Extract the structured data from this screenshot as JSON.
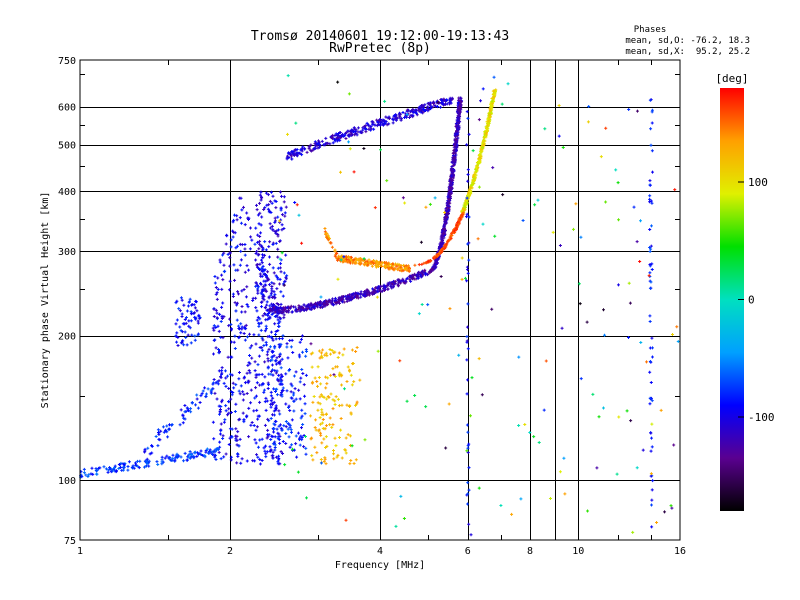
{
  "chart_data": {
    "type": "scatter",
    "title": "Tromsø 20140601 19:12:00-19:13:43",
    "subtitle": "RwPretec (8p)",
    "xlabel": "Frequency [MHz]",
    "ylabel": "Stationary phase Virtual Height [km]",
    "x_scale": "log",
    "y_scale": "log",
    "xlim": [
      1,
      16
    ],
    "ylim": [
      75,
      750
    ],
    "x_ticks": [
      1,
      2,
      4,
      6,
      8,
      10,
      16
    ],
    "x_tick_labels": [
      "1",
      "2",
      "4",
      "6",
      "8",
      "10",
      "16"
    ],
    "x_minor_gridlines": [
      9
    ],
    "y_ticks": [
      75,
      100,
      200,
      300,
      400,
      500,
      600,
      750
    ],
    "y_tick_labels": [
      "75",
      "100",
      "200",
      "300",
      "400",
      "500",
      "600",
      "750"
    ],
    "grid": true,
    "phases_header": "Phases",
    "phases_stats": [
      "mean, sd,O: -76.2, 18.3",
      "mean, sd,X:  95.2, 25.2"
    ],
    "colorbar": {
      "label": "[deg]",
      "range": [
        -180,
        180
      ],
      "ticks": [
        100,
        0,
        -100
      ],
      "tick_labels": [
        "100",
        "0",
        "-100"
      ],
      "colormap": [
        "#000000",
        "#5a0090",
        "#0000ff",
        "#00a0ff",
        "#00e0c0",
        "#00e000",
        "#e0f000",
        "#ffa000",
        "#ff0000"
      ]
    },
    "clusters": [
      {
        "name": "E region low trace",
        "f": [
          1.0,
          1.9
        ],
        "h": [
          103,
          115
        ],
        "phase": -75,
        "count": 160
      },
      {
        "name": "E rising trace",
        "f": [
          1.35,
          1.9
        ],
        "h": [
          115,
          160
        ],
        "phase": -82,
        "count": 70
      },
      {
        "name": "Es patch",
        "f": [
          1.55,
          1.75
        ],
        "h": [
          190,
          240
        ],
        "phase": -88,
        "count": 70
      },
      {
        "name": "F1 spread",
        "f": [
          1.85,
          2.55
        ],
        "h": [
          108,
          400
        ],
        "phase": -95,
        "count": 520
      },
      {
        "name": "F1 spread right",
        "f": [
          2.4,
          2.85
        ],
        "h": [
          110,
          200
        ],
        "phase": -85,
        "count": 140
      },
      {
        "name": "F1 cusp",
        "f": [
          2.25,
          2.6
        ],
        "h": [
          215,
          400
        ],
        "phase": -100,
        "count": 200
      },
      {
        "name": "O-mode F2 trace low",
        "f": [
          2.4,
          5.0
        ],
        "h": [
          225,
          272
        ],
        "phase": -118,
        "count": 420
      },
      {
        "name": "O-mode F2 rise",
        "f": [
          5.0,
          5.8
        ],
        "h": [
          270,
          630
        ],
        "phase": -118,
        "count": 500
      },
      {
        "name": "F2 upper trace",
        "f": [
          2.6,
          5.6
        ],
        "h": [
          470,
          620
        ],
        "phase": -108,
        "count": 340
      },
      {
        "name": "X-mode trace",
        "f": [
          3.1,
          4.6
        ],
        "h": [
          270,
          330
        ],
        "phase": 140,
        "count": 230
      },
      {
        "name": "X-mode rise",
        "f": [
          4.6,
          6.8
        ],
        "h": [
          280,
          650
        ],
        "phase": 100,
        "count": 430
      },
      {
        "name": "X-mode E patch",
        "f": [
          2.9,
          3.6
        ],
        "h": [
          108,
          190
        ],
        "phase": 120,
        "count": 150
      },
      {
        "name": "noise column 6.0 MHz",
        "f": [
          5.96,
          6.04
        ],
        "h": [
          80,
          600
        ],
        "phase": -90,
        "count": 40
      },
      {
        "name": "noise column 14 MHz",
        "f": [
          13.9,
          14.1
        ],
        "h": [
          78,
          680
        ],
        "phase": -80,
        "count": 60
      },
      {
        "name": "scattered noise",
        "f": [
          2.5,
          16
        ],
        "h": [
          76,
          700
        ],
        "phase": 0,
        "count": 170
      }
    ]
  }
}
